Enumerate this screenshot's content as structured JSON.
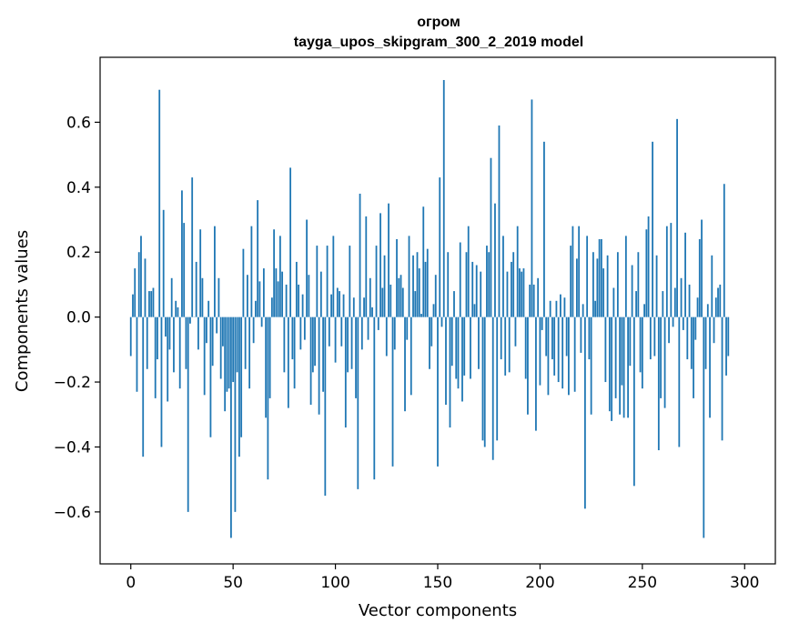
{
  "chart_data": {
    "type": "bar",
    "title": "огром",
    "subtitle": "tayga_upos_skipgram_300_2_2019 model",
    "xlabel": "Vector components",
    "ylabel": "Components values",
    "xlim": [
      -15,
      315
    ],
    "ylim": [
      -0.76,
      0.8
    ],
    "xticks": [
      0,
      50,
      100,
      150,
      200,
      250,
      300
    ],
    "xtick_labels": [
      "0",
      "50",
      "100",
      "150",
      "200",
      "250",
      "300"
    ],
    "yticks": [
      -0.6,
      -0.4,
      -0.2,
      0.0,
      0.2,
      0.4,
      0.6
    ],
    "ytick_labels": [
      "−0.6",
      "−0.4",
      "−0.2",
      "0.0",
      "0.2",
      "0.4",
      "0.6"
    ],
    "bar_color": "#1f77b4",
    "grid": false,
    "values": [
      -0.12,
      0.07,
      0.15,
      -0.23,
      0.2,
      0.25,
      -0.43,
      0.18,
      -0.16,
      0.08,
      0.08,
      0.09,
      -0.25,
      -0.13,
      0.7,
      -0.4,
      0.33,
      -0.06,
      -0.26,
      -0.1,
      0.12,
      -0.17,
      0.05,
      0.03,
      -0.22,
      0.39,
      0.29,
      -0.16,
      -0.6,
      -0.02,
      0.43,
      0.0,
      0.17,
      -0.1,
      0.27,
      0.12,
      -0.24,
      -0.08,
      0.05,
      -0.37,
      -0.15,
      0.28,
      -0.05,
      0.12,
      -0.19,
      -0.09,
      -0.29,
      -0.23,
      -0.22,
      -0.68,
      -0.2,
      -0.6,
      -0.17,
      -0.43,
      -0.37,
      0.21,
      -0.16,
      0.13,
      -0.22,
      0.28,
      -0.08,
      0.05,
      0.36,
      0.11,
      -0.03,
      0.15,
      -0.31,
      -0.5,
      -0.25,
      0.06,
      0.27,
      0.15,
      0.11,
      0.25,
      0.14,
      -0.17,
      0.1,
      -0.28,
      0.46,
      -0.13,
      -0.22,
      0.17,
      0.1,
      -0.1,
      0.07,
      -0.07,
      0.3,
      0.13,
      -0.27,
      -0.17,
      -0.15,
      0.22,
      -0.3,
      0.14,
      -0.23,
      -0.55,
      0.22,
      -0.09,
      0.07,
      0.25,
      -0.14,
      0.09,
      0.08,
      -0.09,
      0.07,
      -0.34,
      -0.17,
      0.22,
      -0.16,
      0.06,
      -0.25,
      -0.53,
      0.38,
      -0.1,
      0.06,
      0.31,
      -0.07,
      0.12,
      0.03,
      -0.5,
      0.22,
      -0.04,
      0.32,
      0.09,
      0.19,
      -0.12,
      0.35,
      0.1,
      -0.46,
      -0.1,
      0.24,
      0.12,
      0.13,
      0.09,
      -0.29,
      -0.07,
      0.25,
      -0.24,
      0.19,
      0.08,
      0.2,
      0.15,
      0.01,
      0.34,
      0.17,
      0.21,
      -0.16,
      -0.09,
      0.04,
      0.13,
      -0.46,
      0.43,
      -0.03,
      0.73,
      -0.27,
      0.2,
      -0.34,
      -0.15,
      0.08,
      -0.19,
      -0.22,
      0.23,
      -0.26,
      -0.18,
      0.2,
      0.28,
      -0.19,
      0.17,
      0.04,
      0.16,
      -0.16,
      0.14,
      -0.38,
      -0.4,
      0.22,
      0.2,
      0.49,
      -0.44,
      0.35,
      -0.38,
      0.59,
      -0.13,
      0.25,
      -0.18,
      0.14,
      -0.17,
      0.17,
      0.2,
      -0.09,
      0.28,
      0.15,
      0.14,
      0.15,
      -0.19,
      -0.3,
      0.1,
      0.67,
      0.1,
      -0.35,
      0.12,
      -0.21,
      -0.04,
      0.54,
      -0.12,
      -0.24,
      0.05,
      -0.13,
      -0.18,
      0.05,
      -0.2,
      0.07,
      -0.22,
      0.06,
      -0.12,
      -0.24,
      0.22,
      0.28,
      -0.23,
      0.18,
      0.28,
      -0.11,
      0.04,
      -0.59,
      0.25,
      -0.13,
      -0.3,
      0.2,
      0.05,
      0.18,
      0.24,
      0.24,
      0.15,
      -0.2,
      0.19,
      -0.29,
      -0.32,
      0.09,
      -0.25,
      0.2,
      -0.3,
      -0.21,
      -0.31,
      0.25,
      -0.31,
      -0.15,
      0.16,
      -0.52,
      0.08,
      0.2,
      -0.17,
      -0.22,
      0.04,
      0.27,
      0.31,
      -0.13,
      0.54,
      -0.12,
      0.19,
      -0.41,
      -0.25,
      0.08,
      -0.28,
      0.28,
      -0.08,
      0.29,
      -0.03,
      0.09,
      0.61,
      -0.4,
      0.12,
      -0.04,
      0.26,
      -0.13,
      0.1,
      -0.16,
      -0.25,
      -0.07,
      0.06,
      0.24,
      0.3,
      -0.68,
      -0.16,
      0.04,
      -0.31,
      0.19,
      -0.08,
      0.06,
      0.09,
      0.1,
      -0.38,
      0.41,
      -0.18,
      -0.12
    ]
  }
}
